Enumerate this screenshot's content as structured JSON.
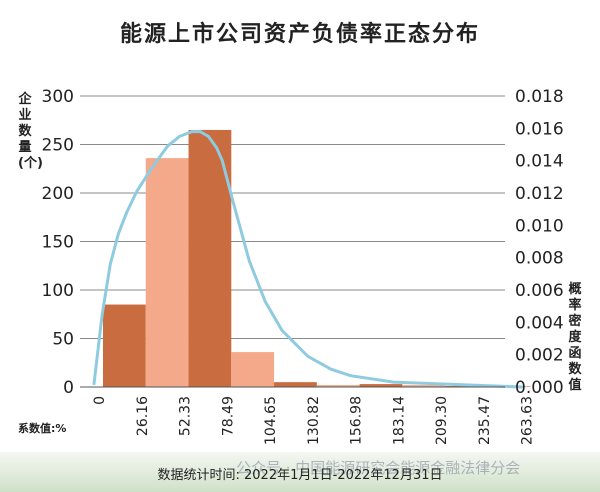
{
  "title": "能源上市公司资产负债率正态分布",
  "left_axis_label": "企业数量(个)",
  "right_axis_label": "概率密度函数值",
  "coefficient_label": "系数值:%",
  "footer": "数据统计时间: 2022年1月1日-2022年12月31日",
  "watermark": "公众号 · 中国能源研究会能源金融法律分会",
  "colors": {
    "dark_bar": "#c96c3f",
    "light_bar": "#f4a98a",
    "curve": "#8fcbe0",
    "grid": "#8a8a8a",
    "band": "#dfead9"
  },
  "chart_data": {
    "type": "bar",
    "title": "能源上市公司资产负债率正态分布",
    "xlabel": "系数值:%",
    "ylabel": "企业数量(个)",
    "y2label": "概率密度函数值",
    "x_ticks": [
      "0",
      "26.16",
      "52.33",
      "78.49",
      "104.65",
      "130.82",
      "156.98",
      "183.14",
      "209.30",
      "235.47",
      "263.63"
    ],
    "bin_edges": [
      0,
      26.16,
      52.33,
      78.49,
      104.65,
      130.82,
      156.98,
      183.14,
      209.3,
      235.47,
      263.63
    ],
    "counts": [
      85,
      236,
      265,
      36,
      5,
      2,
      3,
      2,
      1,
      1
    ],
    "bar_shades": [
      "dark",
      "light",
      "dark",
      "light",
      "dark",
      "light",
      "dark",
      "light",
      "dark",
      "light"
    ],
    "ylim": [
      0,
      300
    ],
    "yticks": [
      0,
      50,
      100,
      150,
      200,
      250,
      300
    ],
    "y2lim": [
      0,
      0.018
    ],
    "y2ticks": [
      "0.000",
      "0.002",
      "0.004",
      "0.006",
      "0.008",
      "0.010",
      "0.012",
      "0.014",
      "0.016",
      "0.018"
    ],
    "density_curve": {
      "x": [
        0,
        5,
        10,
        15,
        20,
        26.16,
        35,
        45,
        52.33,
        60,
        65,
        70,
        75,
        78.49,
        85,
        95,
        104.65,
        115,
        130.82,
        145,
        156.98,
        183.14,
        209.3,
        235.47,
        263.63
      ],
      "y": [
        0.0002,
        0.0045,
        0.0076,
        0.0095,
        0.0108,
        0.0121,
        0.0135,
        0.0149,
        0.0155,
        0.0158,
        0.0158,
        0.0155,
        0.0148,
        0.014,
        0.0115,
        0.0078,
        0.0053,
        0.0035,
        0.0019,
        0.0011,
        0.0007,
        0.0003,
        0.0002,
        0.0001,
        0.0
      ]
    },
    "grid": true,
    "legend": "none"
  }
}
